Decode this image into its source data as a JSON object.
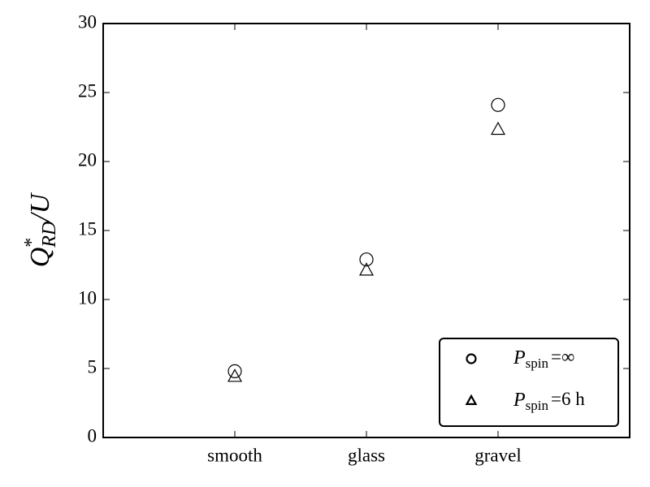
{
  "chart_data": {
    "type": "scatter",
    "ylabel": {
      "base": "Q",
      "sup": "*",
      "sub": "RD",
      "rest": "/U"
    },
    "categories": [
      "smooth",
      "glass",
      "gravel"
    ],
    "series": [
      {
        "name": {
          "base": "P",
          "sub": "spin",
          "rest": "=∞"
        },
        "marker": "circle",
        "color": "#000000",
        "values": [
          4.8,
          12.9,
          24.1
        ]
      },
      {
        "name": {
          "base": "P",
          "sub": "spin",
          "rest": "=6 h"
        },
        "marker": "triangle",
        "color": "#000000",
        "values": [
          4.4,
          12.1,
          22.3
        ]
      }
    ],
    "ylim": [
      0,
      30
    ],
    "yticks": [
      0,
      5,
      10,
      15,
      20,
      25,
      30
    ],
    "legend": "lower right"
  }
}
